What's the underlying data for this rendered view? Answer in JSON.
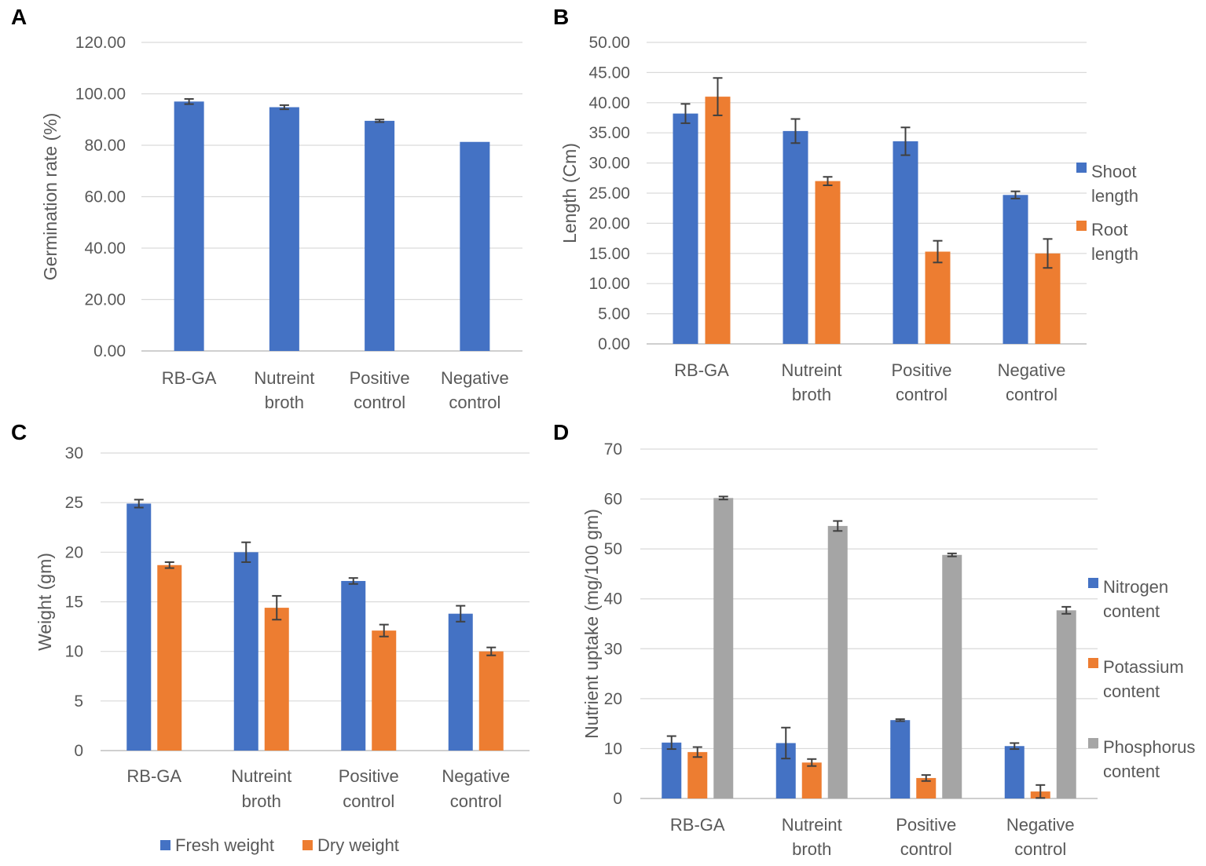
{
  "chart_data": [
    {
      "panel": "A",
      "type": "bar",
      "title": "",
      "xlabel": "",
      "ylabel": "Germination rate (%)",
      "ylim": [
        0,
        120
      ],
      "yticks": [
        "0.00",
        "20.00",
        "40.00",
        "60.00",
        "80.00",
        "100.00",
        "120.00"
      ],
      "categories": [
        [
          "RB-GA"
        ],
        [
          "Nutreint",
          "broth"
        ],
        [
          "Positive",
          "control"
        ],
        [
          "Negative",
          "control"
        ]
      ],
      "series": [
        {
          "name": "Germination rate",
          "color": "#4472c4",
          "values": [
            97.0,
            94.8,
            89.5,
            81.3
          ],
          "errors": [
            1.0,
            0.8,
            0.5,
            0.0
          ]
        }
      ],
      "legend": null
    },
    {
      "panel": "B",
      "type": "bar",
      "title": "",
      "xlabel": "",
      "ylabel": "Length (Cm)",
      "ylim": [
        0,
        50
      ],
      "yticks": [
        "0.00",
        "5.00",
        "10.00",
        "15.00",
        "20.00",
        "25.00",
        "30.00",
        "35.00",
        "40.00",
        "45.00",
        "50.00"
      ],
      "categories": [
        [
          "RB-GA"
        ],
        [
          "Nutreint",
          "broth"
        ],
        [
          "Positive",
          "control"
        ],
        [
          "Negative",
          "control"
        ]
      ],
      "series": [
        {
          "name": "Shoot length",
          "color": "#4472c4",
          "values": [
            38.2,
            35.3,
            33.6,
            24.7
          ],
          "errors": [
            1.6,
            2.0,
            2.3,
            0.6
          ]
        },
        {
          "name": "Root length",
          "color": "#ed7d31",
          "values": [
            41.0,
            27.0,
            15.3,
            15.0
          ],
          "errors": [
            3.1,
            0.7,
            1.8,
            2.4
          ]
        }
      ],
      "legend": {
        "position": "right",
        "entries": [
          [
            "Shoot",
            "length"
          ],
          [
            "Root",
            "length"
          ]
        ]
      }
    },
    {
      "panel": "C",
      "type": "bar",
      "title": "",
      "xlabel": "",
      "ylabel": "Weight (gm)",
      "ylim": [
        0,
        30
      ],
      "yticks": [
        "0",
        "5",
        "10",
        "15",
        "20",
        "25",
        "30"
      ],
      "categories": [
        [
          "RB-GA"
        ],
        [
          "Nutreint",
          "broth"
        ],
        [
          "Positive",
          "control"
        ],
        [
          "Negative",
          "control"
        ]
      ],
      "series": [
        {
          "name": "Fresh weight",
          "color": "#4472c4",
          "values": [
            24.9,
            20.0,
            17.1,
            13.8
          ],
          "errors": [
            0.4,
            1.0,
            0.3,
            0.8
          ]
        },
        {
          "name": "Dry weight",
          "color": "#ed7d31",
          "values": [
            18.7,
            14.4,
            12.1,
            10.0
          ],
          "errors": [
            0.3,
            1.2,
            0.6,
            0.4
          ]
        }
      ],
      "legend": {
        "position": "bottom",
        "entries": [
          [
            "Fresh weight"
          ],
          [
            "Dry weight"
          ]
        ]
      }
    },
    {
      "panel": "D",
      "type": "bar",
      "title": "",
      "xlabel": "",
      "ylabel": "Nutrient uptake (mg/100 gm)",
      "ylim": [
        0,
        70
      ],
      "yticks": [
        "0",
        "10",
        "20",
        "30",
        "40",
        "50",
        "60",
        "70"
      ],
      "categories": [
        [
          "RB-GA"
        ],
        [
          "Nutreint",
          "broth"
        ],
        [
          "Positive",
          "control"
        ],
        [
          "Negative",
          "control"
        ]
      ],
      "series": [
        {
          "name": "Nitrogen content",
          "color": "#4472c4",
          "values": [
            11.2,
            11.1,
            15.7,
            10.5
          ],
          "errors": [
            1.3,
            3.1,
            0.2,
            0.6
          ]
        },
        {
          "name": "Potassium content",
          "color": "#ed7d31",
          "values": [
            9.3,
            7.2,
            4.1,
            1.4
          ],
          "errors": [
            1.0,
            0.7,
            0.6,
            1.3
          ]
        },
        {
          "name": "Phosphorus content",
          "color": "#a5a5a5",
          "values": [
            60.2,
            54.6,
            48.8,
            37.7
          ],
          "errors": [
            0.3,
            1.0,
            0.3,
            0.7
          ]
        }
      ],
      "legend": {
        "position": "right",
        "entries": [
          [
            "Nitrogen",
            "content"
          ],
          [
            "Potassium",
            "content"
          ],
          [
            "Phosphorus",
            "content"
          ]
        ]
      }
    }
  ]
}
